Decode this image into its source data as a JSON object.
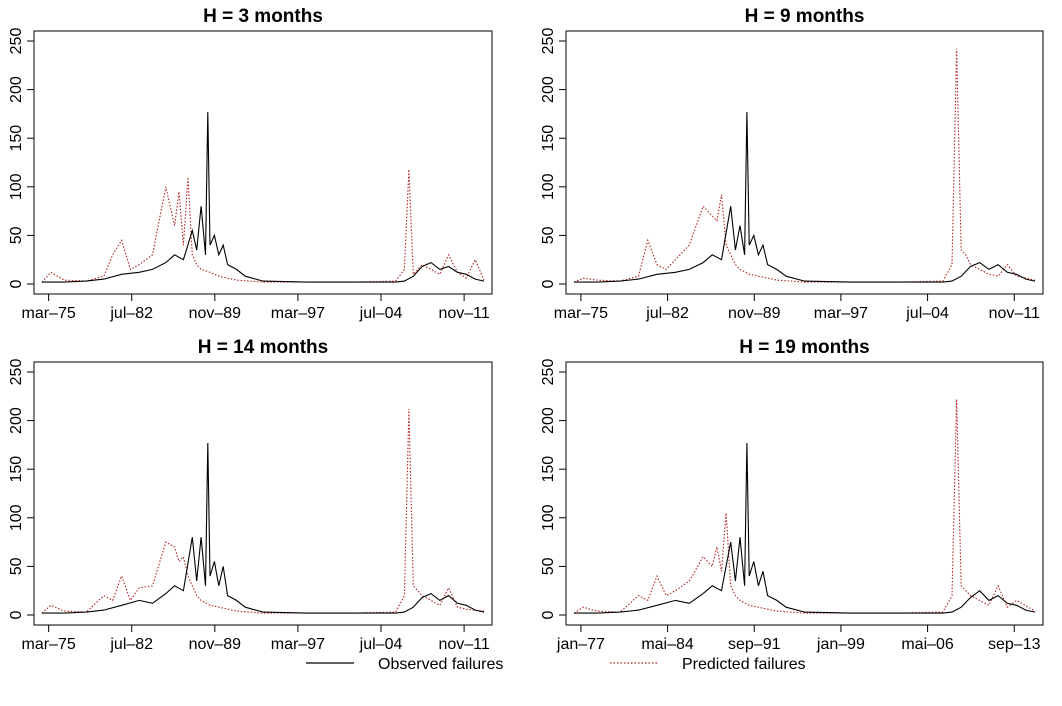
{
  "chart_data": [
    {
      "type": "line",
      "title": "H = 3 months",
      "ylim": [
        0,
        250
      ],
      "yticks": [
        "0",
        "50",
        "100",
        "150",
        "200",
        "250"
      ],
      "xticks": [
        "mar–75",
        "jul–82",
        "nov–89",
        "mar–97",
        "jul–04",
        "nov–11"
      ],
      "series": [
        {
          "name": "Observed failures",
          "color": "#000000",
          "x": [
            0.0,
            0.05,
            0.1,
            0.14,
            0.18,
            0.22,
            0.25,
            0.28,
            0.3,
            0.32,
            0.34,
            0.35,
            0.36,
            0.37,
            0.375,
            0.38,
            0.39,
            0.4,
            0.41,
            0.42,
            0.44,
            0.46,
            0.5,
            0.6,
            0.7,
            0.8,
            0.82,
            0.84,
            0.86,
            0.88,
            0.9,
            0.92,
            0.94,
            0.96,
            0.98,
            1.0
          ],
          "values": [
            2,
            2,
            3,
            5,
            10,
            12,
            15,
            22,
            30,
            25,
            55,
            35,
            80,
            30,
            177,
            40,
            50,
            30,
            40,
            20,
            15,
            8,
            3,
            2,
            2,
            2,
            3,
            8,
            18,
            22,
            15,
            18,
            12,
            10,
            5,
            3
          ]
        },
        {
          "name": "Predicted failures",
          "color": "#b22222",
          "x": [
            0.0,
            0.02,
            0.05,
            0.1,
            0.14,
            0.16,
            0.18,
            0.2,
            0.22,
            0.25,
            0.28,
            0.3,
            0.31,
            0.32,
            0.33,
            0.34,
            0.35,
            0.36,
            0.38,
            0.4,
            0.44,
            0.5,
            0.6,
            0.7,
            0.8,
            0.82,
            0.83,
            0.84,
            0.86,
            0.88,
            0.9,
            0.92,
            0.94,
            0.96,
            0.98,
            1.0
          ],
          "values": [
            2,
            12,
            4,
            3,
            8,
            30,
            45,
            15,
            20,
            30,
            100,
            60,
            95,
            40,
            110,
            30,
            20,
            15,
            12,
            8,
            4,
            2,
            2,
            2,
            3,
            15,
            118,
            10,
            20,
            15,
            10,
            30,
            12,
            6,
            25,
            4
          ]
        }
      ]
    },
    {
      "type": "line",
      "title": "H = 9 months",
      "ylim": [
        0,
        250
      ],
      "yticks": [
        "0",
        "50",
        "100",
        "150",
        "200",
        "250"
      ],
      "xticks": [
        "mar–75",
        "jul–82",
        "nov–89",
        "mar–97",
        "jul–04",
        "nov–11"
      ],
      "series": [
        {
          "name": "Observed failures",
          "color": "#000000",
          "x": [
            0.0,
            0.05,
            0.1,
            0.14,
            0.18,
            0.22,
            0.25,
            0.28,
            0.3,
            0.32,
            0.34,
            0.35,
            0.36,
            0.37,
            0.375,
            0.38,
            0.39,
            0.4,
            0.41,
            0.42,
            0.44,
            0.46,
            0.5,
            0.6,
            0.7,
            0.8,
            0.82,
            0.84,
            0.86,
            0.88,
            0.9,
            0.92,
            0.94,
            0.96,
            0.98,
            1.0
          ],
          "values": [
            2,
            2,
            3,
            5,
            10,
            12,
            15,
            22,
            30,
            25,
            80,
            35,
            60,
            30,
            177,
            40,
            50,
            30,
            40,
            20,
            15,
            8,
            3,
            2,
            2,
            2,
            3,
            8,
            18,
            22,
            15,
            20,
            12,
            10,
            5,
            3
          ]
        },
        {
          "name": "Predicted failures",
          "color": "#b22222",
          "x": [
            0.0,
            0.02,
            0.05,
            0.1,
            0.14,
            0.16,
            0.18,
            0.2,
            0.22,
            0.25,
            0.28,
            0.3,
            0.31,
            0.32,
            0.33,
            0.34,
            0.35,
            0.36,
            0.38,
            0.4,
            0.44,
            0.5,
            0.6,
            0.7,
            0.8,
            0.82,
            0.83,
            0.84,
            0.85,
            0.86,
            0.88,
            0.9,
            0.92,
            0.94,
            0.96,
            1.0
          ],
          "values": [
            2,
            6,
            4,
            3,
            8,
            45,
            20,
            15,
            25,
            40,
            80,
            70,
            65,
            92,
            40,
            30,
            20,
            15,
            10,
            8,
            4,
            2,
            2,
            2,
            3,
            20,
            242,
            35,
            30,
            20,
            15,
            10,
            8,
            20,
            8,
            4
          ]
        }
      ]
    },
    {
      "type": "line",
      "title": "H = 14 months",
      "ylim": [
        0,
        250
      ],
      "yticks": [
        "0",
        "50",
        "100",
        "150",
        "200",
        "250"
      ],
      "xticks": [
        "mar–75",
        "jul–82",
        "nov–89",
        "mar–97",
        "jul–04",
        "nov–11"
      ],
      "series": [
        {
          "name": "Observed failures",
          "color": "#000000",
          "x": [
            0.0,
            0.05,
            0.1,
            0.14,
            0.18,
            0.22,
            0.25,
            0.28,
            0.3,
            0.32,
            0.34,
            0.35,
            0.36,
            0.37,
            0.375,
            0.38,
            0.39,
            0.4,
            0.41,
            0.42,
            0.44,
            0.46,
            0.5,
            0.6,
            0.7,
            0.8,
            0.82,
            0.84,
            0.86,
            0.88,
            0.9,
            0.92,
            0.94,
            0.96,
            0.98,
            1.0
          ],
          "values": [
            2,
            2,
            3,
            5,
            10,
            15,
            12,
            22,
            30,
            25,
            80,
            35,
            80,
            30,
            177,
            40,
            55,
            30,
            50,
            20,
            15,
            8,
            3,
            2,
            2,
            2,
            3,
            8,
            18,
            22,
            15,
            20,
            12,
            10,
            5,
            3
          ]
        },
        {
          "name": "Predicted failures",
          "color": "#b22222",
          "x": [
            0.0,
            0.02,
            0.05,
            0.1,
            0.14,
            0.16,
            0.18,
            0.2,
            0.22,
            0.25,
            0.28,
            0.3,
            0.31,
            0.32,
            0.33,
            0.34,
            0.35,
            0.36,
            0.38,
            0.4,
            0.44,
            0.5,
            0.6,
            0.7,
            0.8,
            0.82,
            0.83,
            0.84,
            0.85,
            0.86,
            0.88,
            0.9,
            0.92,
            0.94,
            0.96,
            1.0
          ],
          "values": [
            2,
            10,
            4,
            3,
            20,
            15,
            40,
            15,
            28,
            30,
            75,
            70,
            55,
            60,
            40,
            30,
            20,
            15,
            10,
            8,
            4,
            2,
            2,
            2,
            3,
            20,
            212,
            30,
            25,
            20,
            15,
            10,
            28,
            8,
            6,
            4
          ]
        }
      ]
    },
    {
      "type": "line",
      "title": "H = 19 months",
      "ylim": [
        0,
        250
      ],
      "yticks": [
        "0",
        "50",
        "100",
        "150",
        "200",
        "250"
      ],
      "xticks": [
        "jan–77",
        "mai–84",
        "sep–91",
        "jan–99",
        "mai–06",
        "sep–13"
      ],
      "series": [
        {
          "name": "Observed failures",
          "color": "#000000",
          "x": [
            0.0,
            0.05,
            0.1,
            0.14,
            0.18,
            0.22,
            0.25,
            0.28,
            0.3,
            0.32,
            0.34,
            0.35,
            0.36,
            0.37,
            0.375,
            0.38,
            0.39,
            0.4,
            0.41,
            0.42,
            0.44,
            0.46,
            0.5,
            0.6,
            0.7,
            0.8,
            0.82,
            0.84,
            0.86,
            0.88,
            0.9,
            0.92,
            0.94,
            0.96,
            0.98,
            1.0
          ],
          "values": [
            2,
            2,
            3,
            5,
            10,
            15,
            12,
            22,
            30,
            25,
            75,
            35,
            80,
            30,
            177,
            40,
            55,
            30,
            45,
            20,
            15,
            8,
            3,
            2,
            2,
            2,
            3,
            8,
            18,
            25,
            15,
            20,
            12,
            10,
            5,
            3
          ]
        },
        {
          "name": "Predicted failures",
          "color": "#b22222",
          "x": [
            0.0,
            0.02,
            0.05,
            0.1,
            0.14,
            0.16,
            0.18,
            0.2,
            0.22,
            0.25,
            0.28,
            0.3,
            0.31,
            0.32,
            0.33,
            0.34,
            0.35,
            0.36,
            0.38,
            0.4,
            0.44,
            0.5,
            0.6,
            0.7,
            0.8,
            0.82,
            0.83,
            0.84,
            0.85,
            0.86,
            0.88,
            0.9,
            0.92,
            0.94,
            0.96,
            1.0
          ],
          "values": [
            2,
            8,
            4,
            3,
            20,
            15,
            40,
            20,
            25,
            35,
            60,
            50,
            70,
            45,
            105,
            30,
            20,
            15,
            10,
            8,
            4,
            2,
            2,
            2,
            3,
            20,
            222,
            30,
            25,
            20,
            15,
            10,
            30,
            8,
            15,
            4
          ]
        }
      ]
    }
  ],
  "legend": {
    "position": "bottom",
    "items": [
      {
        "label": "Observed failures",
        "style": "solid",
        "color": "#000000"
      },
      {
        "label": "Predicted failures",
        "style": "dotted",
        "color": "#b22222"
      }
    ]
  }
}
